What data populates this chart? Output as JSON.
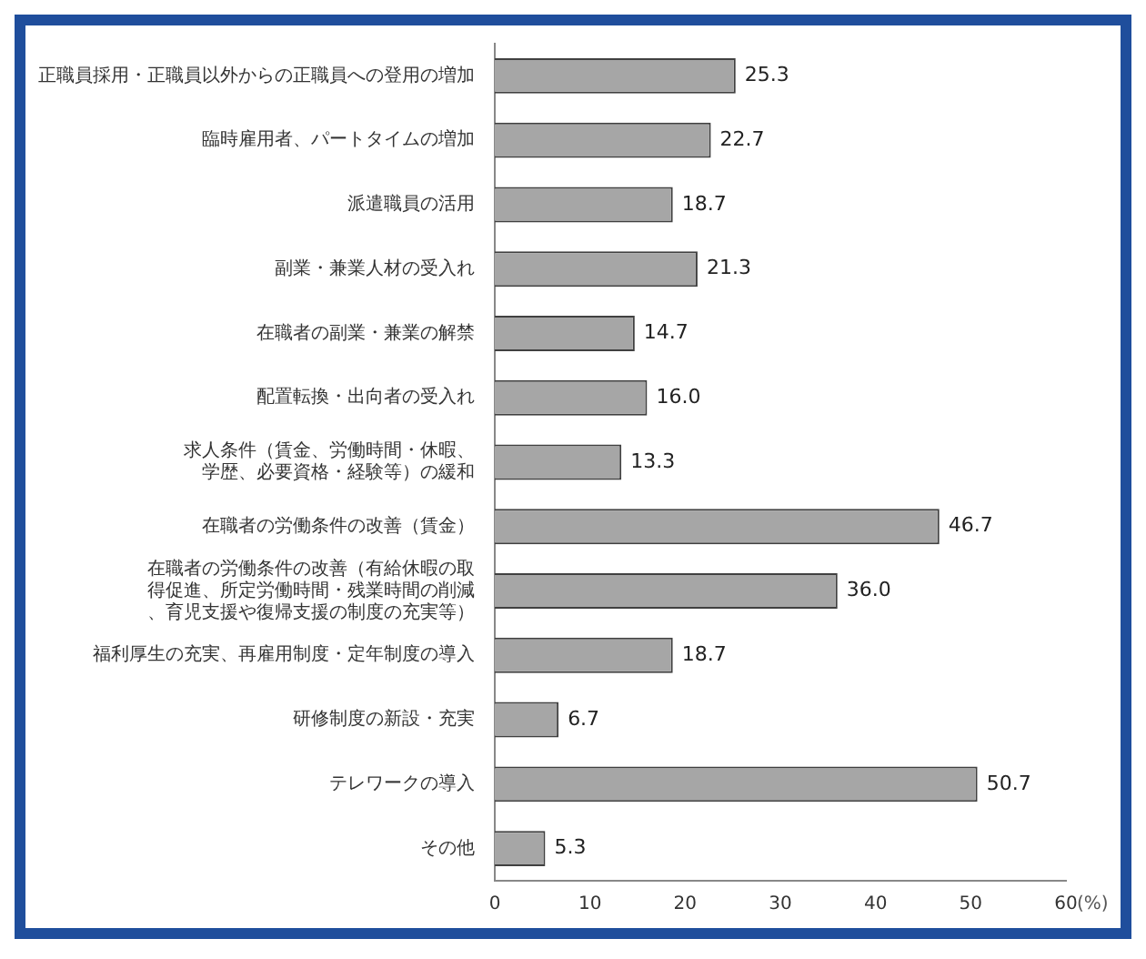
{
  "chart_data": {
    "type": "bar",
    "orientation": "horizontal",
    "xlabel": "(%)",
    "categories": [
      "正職員採用・正職員以外からの正職員への登用の増加",
      "臨時雇用者、パートタイムの増加",
      "派遣職員の活用",
      "副業・兼業人材の受入れ",
      "在職者の副業・兼業の解禁",
      "配置転換・出向者の受入れ",
      "求人条件（賃金、労働時間・休暇、学歴、必要資格・経験等）の緩和",
      "在職者の労働条件の改善（賃金）",
      "在職者の労働条件の改善（有給休暇の取得促進、所定労働時間・残業時間の削減、育児支援や復帰支援の制度の充実等）",
      "福利厚生の充実、再雇用制度・定年制度の導入",
      "研修制度の新設・充実",
      "テレワークの導入",
      "その他"
    ],
    "values": [
      25.3,
      22.7,
      18.7,
      21.3,
      14.7,
      16.0,
      13.3,
      46.7,
      36.0,
      18.7,
      6.7,
      50.7,
      5.3
    ],
    "value_labels": [
      "25.3",
      "22.7",
      "18.7",
      "21.3",
      "14.7",
      "16.0",
      "13.3",
      "46.7",
      "36.0",
      "18.7",
      "6.7",
      "50.7",
      "5.3"
    ],
    "color": "#a6a6a6",
    "xlim": [
      0,
      60
    ],
    "xticks": [
      0,
      10,
      20,
      30,
      40,
      50,
      60
    ],
    "grid": false,
    "legend": false
  }
}
